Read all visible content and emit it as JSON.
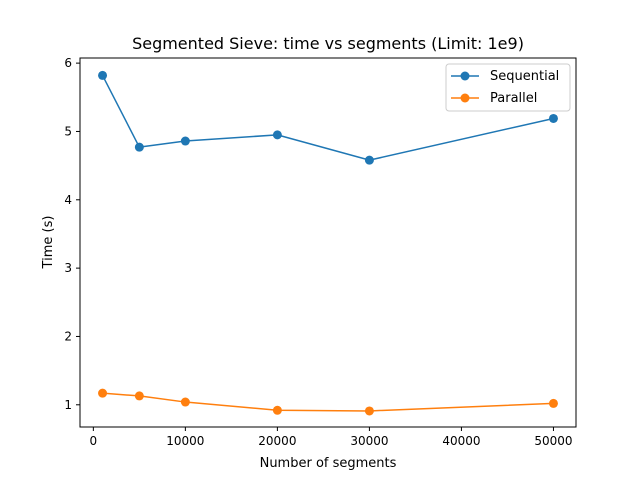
{
  "chart_data": {
    "type": "line",
    "title": "Segmented Sieve: time vs segments (Limit: 1e9)",
    "xlabel": "Number of segments",
    "ylabel": "Time (s)",
    "xlim": [
      -1450,
      52450
    ],
    "ylim": [
      0.675,
      6.075
    ],
    "xticks": [
      0,
      10000,
      20000,
      30000,
      40000,
      50000
    ],
    "yticks": [
      1,
      2,
      3,
      4,
      5,
      6
    ],
    "x": [
      1000,
      5000,
      10000,
      20000,
      30000,
      50000
    ],
    "series": [
      {
        "name": "Sequential",
        "color": "#1f77b4",
        "marker": "circle",
        "values": [
          5.82,
          4.77,
          4.86,
          4.95,
          4.58,
          5.19
        ]
      },
      {
        "name": "Parallel",
        "color": "#ff7f0e",
        "marker": "circle",
        "values": [
          1.17,
          1.13,
          1.04,
          0.92,
          0.91,
          1.02
        ]
      }
    ],
    "legend": "top-right",
    "grid": false
  }
}
